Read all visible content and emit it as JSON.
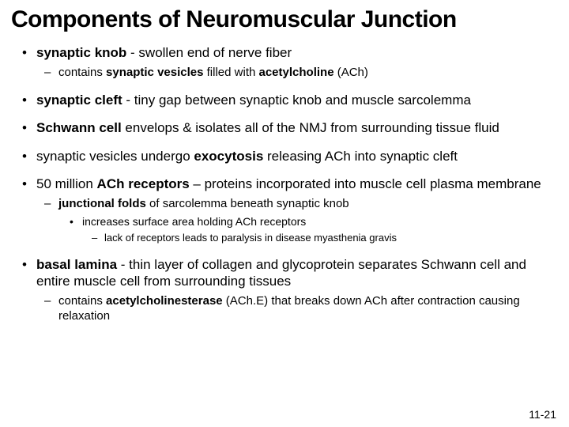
{
  "title": "Components of Neuromuscular Junction",
  "pageNumber": "11-21",
  "bullets": {
    "b1": {
      "bold1": "synaptic knob",
      "plain1": " - swollen end of nerve fiber",
      "sub1_pre": "contains ",
      "sub1_bold1": "synaptic vesicles",
      "sub1_mid": " filled with ",
      "sub1_bold2": "acetylcholine",
      "sub1_post": " (ACh)"
    },
    "b2": {
      "bold1": "synaptic cleft",
      "plain1": " - tiny gap between synaptic knob and muscle sarcolemma"
    },
    "b3": {
      "bold1": "Schwann cell",
      "plain1": " envelops & isolates all of the NMJ from surrounding tissue fluid"
    },
    "b4": {
      "pre": "synaptic vesicles undergo ",
      "bold1": "exocytosis",
      "post": " releasing ACh into synaptic cleft"
    },
    "b5": {
      "pre": "50 million ",
      "bold1": "ACh receptors",
      "post": " – proteins incorporated into muscle cell plasma membrane",
      "sub1_bold": "junctional folds",
      "sub1_plain": " of sarcolemma beneath synaptic knob",
      "sub1_sub1": "increases surface area holding ACh receptors",
      "sub1_sub1_sub1": "lack of receptors leads to paralysis in disease myasthenia gravis"
    },
    "b6": {
      "bold1": "basal lamina",
      "plain1": " - thin layer of collagen and glycoprotein separates Schwann cell and entire muscle cell from surrounding tissues",
      "sub1_pre": "contains ",
      "sub1_bold": "acetylcholinesterase",
      "sub1_post": " (ACh.E) that breaks down ACh after contraction causing relaxation"
    }
  }
}
